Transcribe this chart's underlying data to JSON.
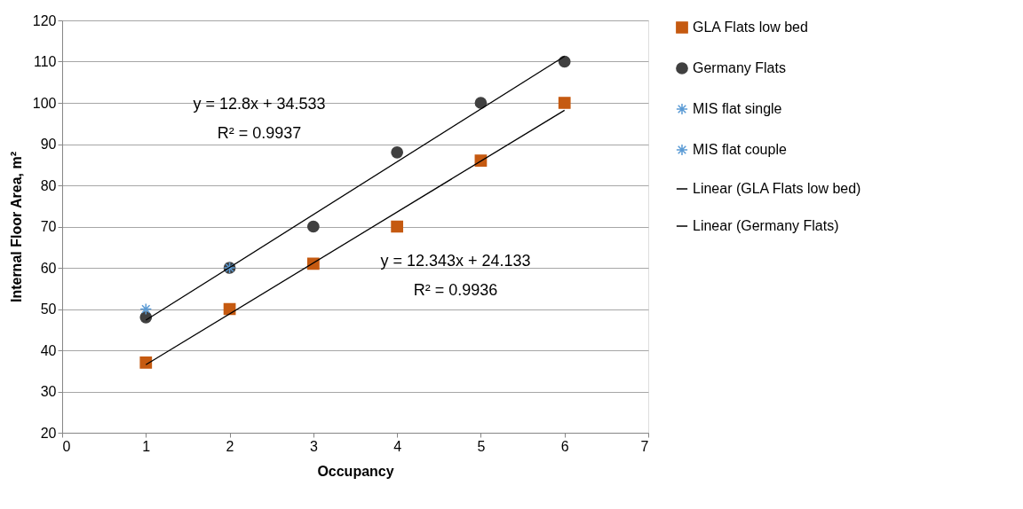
{
  "chart_data": {
    "type": "scatter",
    "xlabel": "Occupancy",
    "ylabel": "Internal Floor Area, m²",
    "xlim": [
      0,
      7
    ],
    "xticks": [
      0,
      1,
      2,
      3,
      4,
      5,
      6,
      7
    ],
    "ylim": [
      20,
      120
    ],
    "yticks": [
      20,
      30,
      40,
      50,
      60,
      70,
      80,
      90,
      100,
      110,
      120
    ],
    "grid": "y",
    "legend": "right",
    "series": [
      {
        "name": "GLA Flats low bed",
        "marker": "square",
        "color": "#c55a11",
        "x": [
          1,
          2,
          3,
          4,
          5,
          6
        ],
        "values": [
          37,
          50,
          61,
          70,
          86,
          100
        ]
      },
      {
        "name": "Germany Flats",
        "marker": "circle",
        "color": "#404040",
        "x": [
          1,
          2,
          3,
          4,
          5,
          6
        ],
        "values": [
          48,
          60,
          70,
          88,
          100,
          110
        ]
      },
      {
        "name": "MIS flat single",
        "marker": "cross",
        "color": "#5b9bd5",
        "x": [
          1
        ],
        "values": [
          50
        ]
      },
      {
        "name": "MIS flat couple",
        "marker": "cross",
        "color": "#5b9bd5",
        "x": [
          2
        ],
        "values": [
          60
        ]
      },
      {
        "name": "Linear (GLA Flats low bed)",
        "type": "line",
        "marker": "none",
        "color": "#000000",
        "x": [
          1,
          6
        ],
        "values": [
          36.5,
          98.2
        ]
      },
      {
        "name": "Linear (Germany Flats)",
        "type": "line",
        "marker": "none",
        "color": "#000000",
        "x": [
          1,
          6
        ],
        "values": [
          47.3,
          111.3
        ]
      }
    ],
    "annotations": [
      "y = 12.8x + 34.533",
      "R² = 0.9937",
      "y = 12.343x + 24.133",
      "R² = 0.9936"
    ]
  }
}
